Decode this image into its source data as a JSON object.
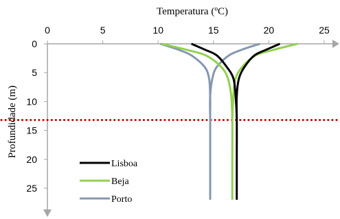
{
  "chart_data": {
    "type": "line",
    "title": "",
    "xlabel": "Temperatura (ºC)",
    "ylabel": "Profundidade (m)",
    "x_axis_position": "top",
    "y_axis_inverted": true,
    "xlim": [
      0,
      25
    ],
    "ylim": [
      0,
      25
    ],
    "x_ticks": [
      0,
      5,
      10,
      15,
      20,
      25
    ],
    "y_ticks": [
      0,
      5,
      10,
      15,
      20,
      25
    ],
    "grid": false,
    "legend_position": "bottom-left",
    "reference_line": {
      "axis": "y",
      "value": 13.2,
      "color": "#c00000",
      "style": "dotted"
    },
    "series": [
      {
        "name": "Lisboa",
        "color": "#000000",
        "branches": [
          {
            "x": [
              13.0,
              14.2,
              15.3,
              16.2,
              16.8,
              17.0,
              17.1,
              17.1,
              17.1
            ],
            "y": [
              0,
              1,
              2,
              4,
              6,
              9,
              13,
              20,
              27
            ]
          },
          {
            "x": [
              21.0,
              19.8,
              18.7,
              17.8,
              17.3,
              17.1,
              17.1
            ],
            "y": [
              0,
              1,
              2,
              4,
              6,
              9,
              13
            ]
          }
        ]
      },
      {
        "name": "Beja",
        "color": "#92d050",
        "branches": [
          {
            "x": [
              10.3,
              12.5,
              14.3,
              15.7,
              16.3,
              16.6,
              16.7,
              16.7,
              16.7
            ],
            "y": [
              0,
              1,
              2,
              4,
              6,
              9,
              13,
              20,
              27
            ]
          },
          {
            "x": [
              22.6,
              20.5,
              18.8,
              17.6,
              17.0,
              16.8,
              16.7
            ],
            "y": [
              0,
              1,
              2,
              4,
              6,
              9,
              13
            ]
          }
        ]
      },
      {
        "name": "Porto",
        "color": "#8497b0",
        "branches": [
          {
            "x": [
              10.2,
              11.8,
              13.0,
              14.2,
              14.6,
              14.7,
              14.7,
              14.7
            ],
            "y": [
              0,
              1,
              2,
              4,
              6,
              9,
              13,
              27
            ]
          },
          {
            "x": [
              19.2,
              17.6,
              16.4,
              15.3,
              14.9,
              14.7,
              14.7
            ],
            "y": [
              0,
              1,
              2,
              4,
              6,
              9,
              13
            ]
          }
        ]
      }
    ]
  }
}
